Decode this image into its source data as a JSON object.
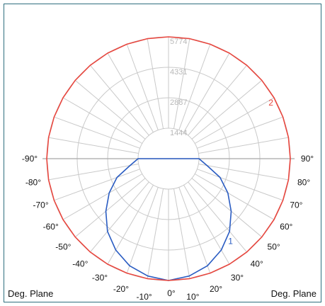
{
  "chart_data": {
    "type": "polar",
    "radial_ticks": [
      "1444",
      "2887",
      "4331",
      "5774"
    ],
    "angle_labels_left": [
      "-90°",
      "-80°",
      "-70°",
      "-60°",
      "-50°",
      "-40°",
      "-30°",
      "-20°",
      "-10°"
    ],
    "angle_labels_right": [
      "90°",
      "80°",
      "70°",
      "60°",
      "50°",
      "40°",
      "30°",
      "20°",
      "10°"
    ],
    "angle_label_center": "0°",
    "rmax": 5774,
    "series": [
      {
        "name": "1",
        "color": "#2a5cc2",
        "points": [
          [
            0,
            5774
          ],
          [
            10,
            5650
          ],
          [
            20,
            5400
          ],
          [
            30,
            5000
          ],
          [
            40,
            4500
          ],
          [
            50,
            3880
          ],
          [
            60,
            3250
          ],
          [
            70,
            2600
          ],
          [
            80,
            1850
          ],
          [
            90,
            1444
          ]
        ]
      },
      {
        "name": "2",
        "color": "#e8473f",
        "points": [
          [
            0,
            5774
          ],
          [
            10,
            5774
          ],
          [
            20,
            5774
          ],
          [
            30,
            5774
          ],
          [
            40,
            5774
          ],
          [
            50,
            5774
          ],
          [
            60,
            5774
          ],
          [
            70,
            5774
          ],
          [
            80,
            5774
          ],
          [
            90,
            5774
          ],
          [
            100,
            5774
          ],
          [
            110,
            5774
          ],
          [
            120,
            5774
          ],
          [
            130,
            5774
          ],
          [
            140,
            5774
          ],
          [
            150,
            5774
          ],
          [
            160,
            5774
          ],
          [
            170,
            5774
          ],
          [
            180,
            5774
          ]
        ]
      }
    ]
  },
  "footer": {
    "left": "Deg. Plane",
    "right": "Deg. Plane"
  }
}
